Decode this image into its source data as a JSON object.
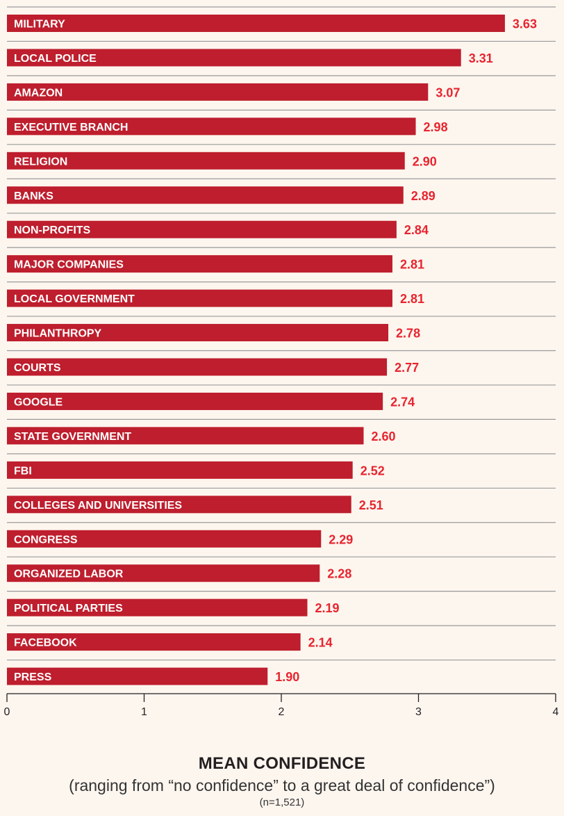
{
  "chart_data": {
    "type": "bar",
    "orientation": "horizontal",
    "title": "",
    "categories": [
      "MILITARY",
      "LOCAL POLICE",
      "AMAZON",
      "EXECUTIVE BRANCH",
      "RELIGION",
      "BANKS",
      "NON-PROFITS",
      "MAJOR COMPANIES",
      "LOCAL GOVERNMENT",
      "PHILANTHROPY",
      "COURTS",
      "GOOGLE",
      "STATE GOVERNMENT",
      "FBI",
      "COLLEGES AND UNIVERSITIES",
      "CONGRESS",
      "ORGANIZED LABOR",
      "POLITICAL PARTIES",
      "FACEBOOK",
      "PRESS"
    ],
    "values": [
      3.63,
      3.31,
      3.07,
      2.98,
      2.9,
      2.89,
      2.84,
      2.81,
      2.81,
      2.78,
      2.77,
      2.74,
      2.6,
      2.52,
      2.51,
      2.29,
      2.28,
      2.19,
      2.14,
      1.9
    ],
    "value_labels": [
      "3.63",
      "3.31",
      "3.07",
      "2.98",
      "2.90",
      "2.89",
      "2.84",
      "2.81",
      "2.81",
      "2.78",
      "2.77",
      "2.74",
      "2.60",
      "2.52",
      "2.51",
      "2.29",
      "2.28",
      "2.19",
      "2.14",
      "1.90"
    ],
    "xlabel": "MEAN CONFIDENCE",
    "xlabel_subtitle": "(ranging from “no confidence” to a great deal of confidence”)",
    "note": "(n=1,521)",
    "ylabel": "",
    "xlim": [
      0,
      4
    ],
    "xticks": [
      0,
      1,
      2,
      3,
      4
    ],
    "xtick_labels": [
      "0",
      "1",
      "2",
      "3",
      "4"
    ],
    "grid": false,
    "legend": "none",
    "colors": {
      "bar": "#be1e2d",
      "value_text": "#e8242e",
      "divider": "#9a9a9a",
      "axis": "#231f20",
      "background": "#fdf6ef"
    }
  }
}
